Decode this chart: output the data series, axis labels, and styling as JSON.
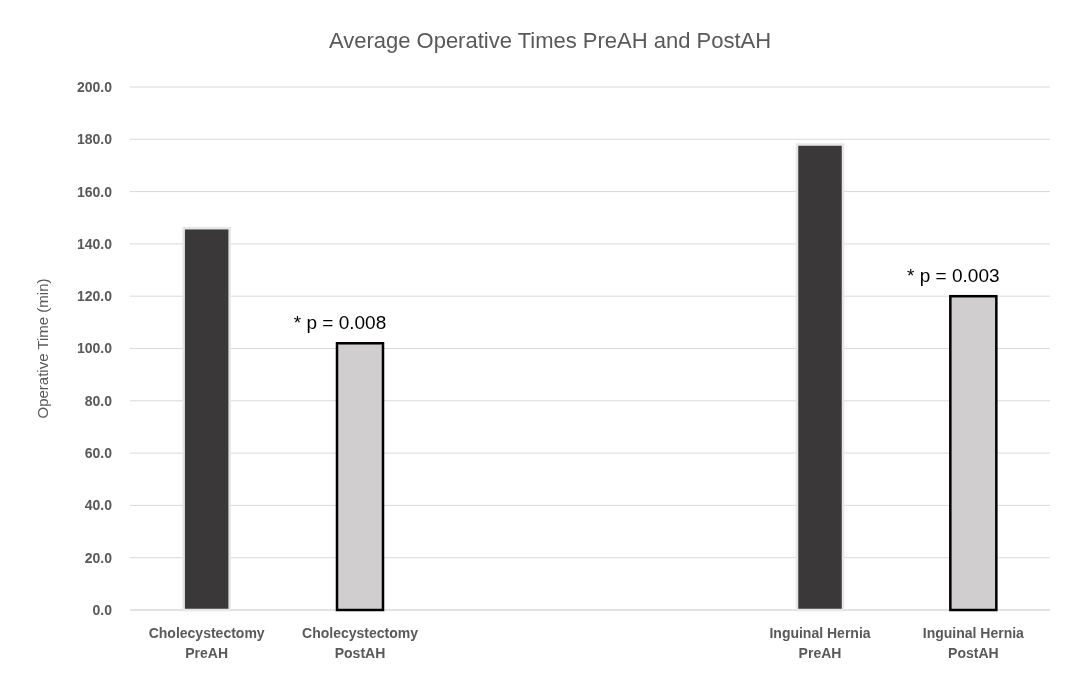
{
  "chart_data": {
    "type": "bar",
    "title": "Average Operative Times PreAH and PostAH",
    "ylabel": "Operative Time (min)",
    "categories": [
      "Cholecystectomy PreAH",
      "Cholecystectomy PostAH",
      null,
      null,
      "Inguinal Hernia PreAH",
      "Inguinal Hernia PostAH"
    ],
    "values": [
      146,
      102,
      null,
      null,
      178,
      120
    ],
    "colors": [
      "#3a3839",
      "#d0cecf",
      null,
      null,
      "#3a3839",
      "#d0cecf"
    ],
    "ylim": [
      0,
      200
    ],
    "yticks": [
      {
        "value": 0,
        "label": "0.0"
      },
      {
        "value": 20,
        "label": "20.0"
      },
      {
        "value": 40,
        "label": "40.0"
      },
      {
        "value": 60,
        "label": "60.0"
      },
      {
        "value": 80,
        "label": "80.0"
      },
      {
        "value": 100,
        "label": "100.0"
      },
      {
        "value": 120,
        "label": "120.0"
      },
      {
        "value": 140,
        "label": "140.0"
      },
      {
        "value": 160,
        "label": "160.0"
      },
      {
        "value": 180,
        "label": "180.0"
      },
      {
        "value": 200,
        "label": "200.0"
      }
    ],
    "grid": "y",
    "annotations": [
      {
        "text": "* p = 0.008",
        "x": "Cholecystectomy PostAH",
        "y": 102
      },
      {
        "text": "* p = 0.003",
        "x": "Inguinal Hernia PostAH",
        "y": 120
      }
    ]
  }
}
